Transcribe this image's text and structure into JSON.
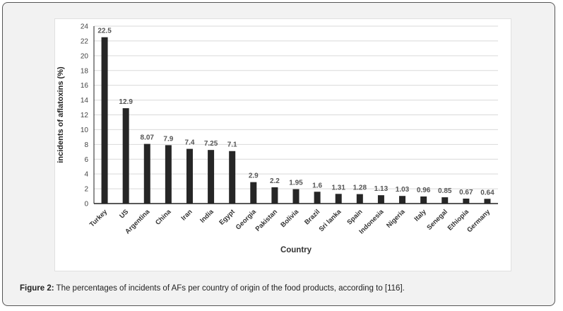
{
  "caption": {
    "label": "Figure 2:",
    "text": " The percentages of incidents of AFs per country of origin of the food products, according to [116]."
  },
  "chart_data": {
    "type": "bar",
    "title": "",
    "xlabel": "Country",
    "ylabel": "incidents of aflatoxins (%)",
    "ylim": [
      0,
      24
    ],
    "yticks": [
      0,
      2,
      4,
      6,
      8,
      10,
      12,
      14,
      16,
      18,
      20,
      22,
      24
    ],
    "grid": true,
    "categories": [
      "Turkey",
      "US",
      "Argentina",
      "China",
      "Iran",
      "India",
      "Egypt",
      "Georgia",
      "Pakistan",
      "Bolivia",
      "Brazil",
      "Sri lanka",
      "Spain",
      "Indonesia",
      "Nigeria",
      "Italy",
      "Senegal",
      "Ethiopia",
      "Germany"
    ],
    "values": [
      22.5,
      12.9,
      8.07,
      7.9,
      7.4,
      7.25,
      7.1,
      2.9,
      2.2,
      1.95,
      1.6,
      1.31,
      1.28,
      1.13,
      1.03,
      0.96,
      0.85,
      0.67,
      0.64
    ],
    "labels": [
      "22.5",
      "12.9",
      "8.07",
      "7.9",
      "7.4",
      "7.25",
      "7.1",
      "2.9",
      "2.2",
      "1.95",
      "1.6",
      "1.31",
      "1.28",
      "1.13",
      "1.03",
      "0.96",
      "0.85",
      "0.67",
      "0.64"
    ],
    "bar_color": "#262626"
  }
}
